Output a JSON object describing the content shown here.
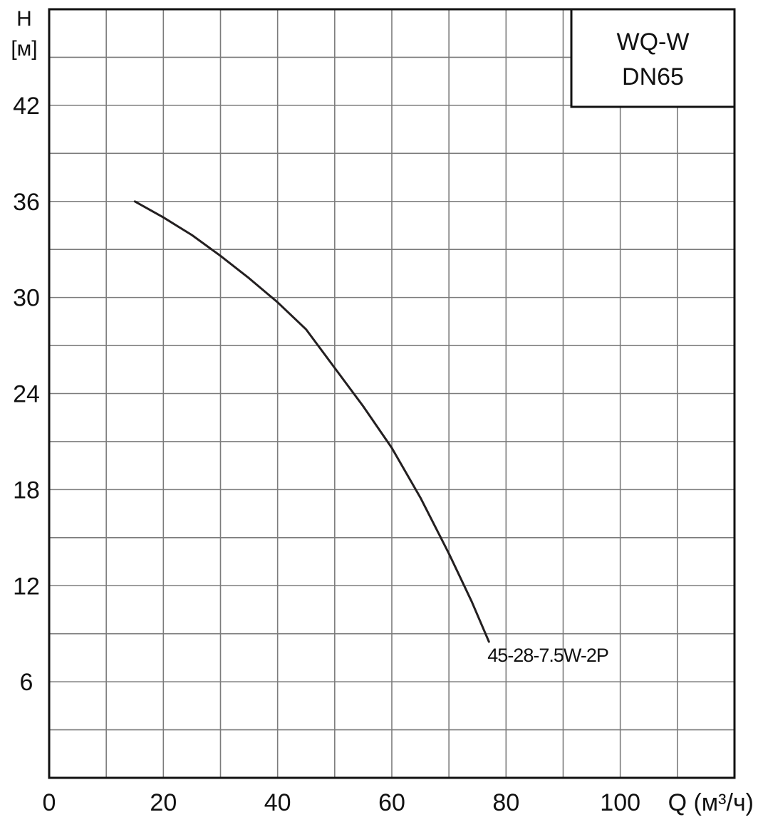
{
  "chart_data": {
    "type": "line",
    "title_box": {
      "line1": "WQ-W",
      "line2": "DN65"
    },
    "ylabel": {
      "symbol": "H",
      "unit": "[м]"
    },
    "xlabel": "Q (м³/ч)",
    "xlim": [
      0,
      120
    ],
    "ylim": [
      0,
      48
    ],
    "x_ticks": [
      0,
      20,
      40,
      60,
      80,
      100
    ],
    "x_tick_labels": [
      "0",
      "20",
      "40",
      "60",
      "80",
      "100"
    ],
    "y_ticks": [
      6,
      12,
      18,
      24,
      30,
      36,
      42
    ],
    "y_tick_labels": [
      "6",
      "12",
      "18",
      "24",
      "30",
      "36",
      "42"
    ],
    "grid": true,
    "grid_step_x": 10,
    "grid_step_y": 3,
    "series": [
      {
        "name": "45-28-7.5W-2P",
        "color": "#231f20",
        "x": [
          15,
          20,
          25,
          30,
          35,
          40,
          45,
          50,
          55,
          60,
          65,
          70,
          74,
          77
        ],
        "y": [
          36,
          35.0,
          33.9,
          32.6,
          31.2,
          29.7,
          28.0,
          25.6,
          23.2,
          20.6,
          17.5,
          14.0,
          11.0,
          8.5
        ]
      }
    ],
    "colors": {
      "grid": "#7b7b7b",
      "frame": "#111111",
      "text": "#111111"
    }
  }
}
